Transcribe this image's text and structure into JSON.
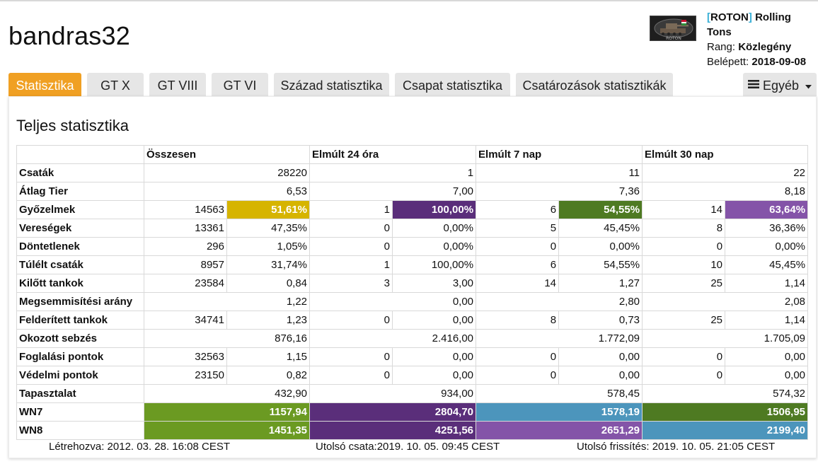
{
  "header": {
    "username": "bandras32",
    "clan_tag": "ROTON",
    "clan_name": "Rolling Tons",
    "rank_label": "Rang:",
    "rank_value": "Közlegény",
    "joined_label": "Belépett:",
    "joined_value": "2018-09-08",
    "logo_text": "ROTON"
  },
  "tabs": [
    {
      "label": "Statisztika",
      "active": true
    },
    {
      "label": "GT X"
    },
    {
      "label": "GT VIII"
    },
    {
      "label": "GT VI"
    },
    {
      "label": "Század statisztika"
    },
    {
      "label": "Csapat statisztika"
    },
    {
      "label": "Csatározások statisztikák"
    }
  ],
  "more_label": "Egyéb",
  "panel_title": "Teljes statisztika",
  "columns": [
    "Összesen",
    "Elmúlt 24 óra",
    "Elmúlt 7 nap",
    "Elmúlt 30 nap"
  ],
  "rows": [
    {
      "label": "Csaták",
      "cells": [
        [
          "28220"
        ],
        [
          "1"
        ],
        [
          "11"
        ],
        [
          "22"
        ]
      ]
    },
    {
      "label": "Átlag Tier",
      "cells": [
        [
          "6,53"
        ],
        [
          "7,00"
        ],
        [
          "7,36"
        ],
        [
          "8,18"
        ]
      ]
    },
    {
      "label": "Győzelmek",
      "cells": [
        [
          "14563",
          "51,61%"
        ],
        [
          "1",
          "100,00%"
        ],
        [
          "6",
          "54,55%"
        ],
        [
          "14",
          "63,64%"
        ]
      ],
      "highlight": [
        "#d6b400",
        "#5a2e7a",
        "#4e7a22",
        "#8454a8"
      ]
    },
    {
      "label": "Vereségek",
      "cells": [
        [
          "13361",
          "47,35%"
        ],
        [
          "0",
          "0,00%"
        ],
        [
          "5",
          "45,45%"
        ],
        [
          "8",
          "36,36%"
        ]
      ]
    },
    {
      "label": "Döntetlenek",
      "cells": [
        [
          "296",
          "1,05%"
        ],
        [
          "0",
          "0,00%"
        ],
        [
          "0",
          "0,00%"
        ],
        [
          "0",
          "0,00%"
        ]
      ]
    },
    {
      "label": "Túlélt csaták",
      "cells": [
        [
          "8957",
          "31,74%"
        ],
        [
          "1",
          "100,00%"
        ],
        [
          "6",
          "54,55%"
        ],
        [
          "10",
          "45,45%"
        ]
      ]
    },
    {
      "label": "Kilőtt tankok",
      "cells": [
        [
          "23584",
          "0,84"
        ],
        [
          "3",
          "3,00"
        ],
        [
          "14",
          "1,27"
        ],
        [
          "25",
          "1,14"
        ]
      ]
    },
    {
      "label": "Megsemmisítési arány",
      "cells": [
        [
          "1,22"
        ],
        [
          "0,00"
        ],
        [
          "2,80"
        ],
        [
          "2,08"
        ]
      ]
    },
    {
      "label": "Felderített tankok",
      "cells": [
        [
          "34741",
          "1,23"
        ],
        [
          "0",
          "0,00"
        ],
        [
          "8",
          "0,73"
        ],
        [
          "25",
          "1,14"
        ]
      ]
    },
    {
      "label": "Okozott sebzés",
      "cells": [
        [
          "876,16"
        ],
        [
          "2.416,00"
        ],
        [
          "1.772,09"
        ],
        [
          "1.705,09"
        ]
      ]
    },
    {
      "label": "Foglalási pontok",
      "cells": [
        [
          "32563",
          "1,15"
        ],
        [
          "0",
          "0,00"
        ],
        [
          "0",
          "0,00"
        ],
        [
          "0",
          "0,00"
        ]
      ]
    },
    {
      "label": "Védelmi pontok",
      "cells": [
        [
          "23150",
          "0,82"
        ],
        [
          "0",
          "0,00"
        ],
        [
          "0",
          "0,00"
        ],
        [
          "0",
          "0,00"
        ]
      ]
    },
    {
      "label": "Tapasztalat",
      "cells": [
        [
          "432,90"
        ],
        [
          "934,00"
        ],
        [
          "578,45"
        ],
        [
          "574,32"
        ]
      ]
    },
    {
      "label": "WN7",
      "cells": [
        [
          "1157,94"
        ],
        [
          "2804,70"
        ],
        [
          "1578,19"
        ],
        [
          "1506,95"
        ]
      ],
      "highlight": [
        "#6b9a22",
        "#5a2e7a",
        "#4c95bc",
        "#4e7a22"
      ]
    },
    {
      "label": "WN8",
      "cells": [
        [
          "1451,35"
        ],
        [
          "4251,56"
        ],
        [
          "2651,29"
        ],
        [
          "2199,40"
        ]
      ],
      "highlight": [
        "#6b9a22",
        "#5a2e7a",
        "#8454a8",
        "#4c95bc"
      ]
    }
  ],
  "footer": {
    "created": "Létrehozva: 2012. 03. 28. 16:08 CEST",
    "last_battle": "Utolsó csata:2019. 10. 05. 09:45 CEST",
    "last_update": "Utolsó frissítés: 2019. 10. 05. 21:05 CEST"
  }
}
